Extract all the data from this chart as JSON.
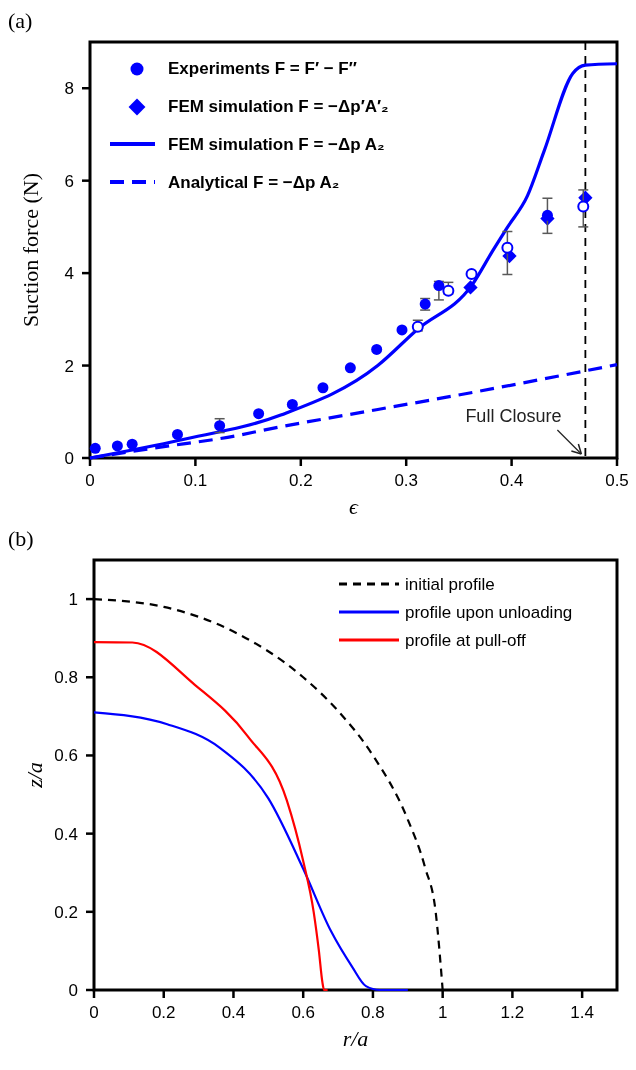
{
  "chart_data": [
    {
      "type": "scatter",
      "title": "(a)",
      "xlabel": "ϵ",
      "ylabel": "Suction force (N)",
      "xlim": [
        0,
        0.5
      ],
      "ylim": [
        0,
        9
      ],
      "xticks": [
        0,
        0.1,
        0.2,
        0.3,
        0.4,
        0.5
      ],
      "yticks": [
        0,
        2,
        4,
        6,
        8
      ],
      "grid": false,
      "legend": "top left",
      "ref_lines": [
        {
          "axis": "x",
          "value": 0.47,
          "color": "#000000",
          "line_style": "dashed"
        }
      ],
      "annotations": [
        {
          "text": "Full Closure",
          "x": 0.47,
          "y": 0
        }
      ],
      "series": [
        {
          "name": "Experiments F = F′ − F″",
          "marker": "circle",
          "color": "#0000ff",
          "x": [
            0.005,
            0.026,
            0.04,
            0.083,
            0.123,
            0.16,
            0.192,
            0.221,
            0.247,
            0.272,
            0.296,
            0.318,
            0.331,
            0.434
          ],
          "values": [
            0.21,
            0.26,
            0.3,
            0.51,
            0.7,
            0.96,
            1.16,
            1.52,
            1.95,
            2.35,
            2.77,
            3.33,
            3.73,
            5.25
          ],
          "errors": [
            null,
            null,
            null,
            null,
            [
              0.55,
              0.85
            ],
            null,
            null,
            null,
            null,
            null,
            null,
            [
              3.2,
              3.45
            ],
            [
              3.42,
              3.82
            ],
            [
              4.86,
              5.62
            ]
          ]
        },
        {
          "marker": "circle",
          "color": "#0000ff",
          "x": [
            0.311,
            0.34,
            0.362,
            0.396,
            0.468
          ],
          "values": [
            2.84,
            3.62,
            3.98,
            4.55,
            5.44
          ],
          "errors": [
            [
              2.75,
              2.98
            ],
            [
              3.55,
              3.8
            ],
            null,
            [
              3.97,
              4.9
            ],
            [
              5.0,
              5.8
            ]
          ]
        },
        {
          "name": "FEM simulation F = −Δp′A′₂",
          "marker": "diamond",
          "color": "#0000ff",
          "x": [
            0.361,
            0.398,
            0.434,
            0.47
          ],
          "values": [
            3.69,
            4.37,
            5.18,
            5.63
          ]
        },
        {
          "name": "FEM simulation F = −Δp A₂",
          "type": "line",
          "marker": "none",
          "line_style": "solid",
          "color": "#0000ff",
          "x": [
            0,
            0.086,
            0.181,
            0.273,
            0.31,
            0.363,
            0.382,
            0.396,
            0.415,
            0.431,
            0.458,
            0.47,
            0.5
          ],
          "values": [
            0,
            0.39,
            0.93,
            2.0,
            2.77,
            3.76,
            4.48,
            4.99,
            5.67,
            6.65,
            8.32,
            8.5,
            8.53
          ]
        },
        {
          "name": "Analytical F = −Δp A₂",
          "type": "line",
          "marker": "none",
          "line_style": "dashed",
          "color": "#0000ff",
          "x": [
            0,
            0.059,
            0.143,
            0.162,
            0.273,
            0.337,
            0.471,
            0.5
          ],
          "values": [
            0,
            0.21,
            0.5,
            0.59,
            1.05,
            1.31,
            1.89,
            2.02
          ]
        }
      ]
    },
    {
      "type": "line",
      "title": "(b)",
      "xlabel": "r/a",
      "ylabel": "z/a",
      "xlim": [
        0,
        1.5
      ],
      "ylim": [
        0,
        1.1
      ],
      "xticks": [
        0,
        0.2,
        0.4,
        0.6,
        0.8,
        1,
        1.2,
        1.4
      ],
      "yticks": [
        0,
        0.2,
        0.4,
        0.6,
        0.8,
        1
      ],
      "grid": false,
      "legend": "top right",
      "series": [
        {
          "name": "initial profile",
          "line_style": "dashed",
          "color": "#000000",
          "x": [
            0,
            0.2,
            0.4,
            0.6,
            0.7,
            0.8,
            0.9,
            0.95,
            0.98,
            1
          ],
          "values": [
            1,
            0.98,
            0.917,
            0.8,
            0.714,
            0.6,
            0.436,
            0.312,
            0.199,
            0
          ]
        },
        {
          "name": "profile upon unloading",
          "line_style": "solid",
          "color": "#0000ff",
          "x": [
            0,
            0.21,
            0.36,
            0.5,
            0.6,
            0.68,
            0.74,
            0.78,
            0.82,
            0.9
          ],
          "values": [
            0.71,
            0.68,
            0.62,
            0.49,
            0.31,
            0.15,
            0.06,
            0.01,
            0,
            0
          ]
        },
        {
          "name": "profile at pull-off",
          "line_style": "solid",
          "color": "#ff0000",
          "x": [
            0,
            0.11,
            0.29,
            0.44,
            0.553,
            0.6,
            0.63,
            0.645,
            0.655,
            0.66,
            0.67
          ],
          "values": [
            0.89,
            0.889,
            0.78,
            0.65,
            0.485,
            0.33,
            0.2,
            0.1,
            0.02,
            0,
            0
          ]
        }
      ]
    }
  ]
}
